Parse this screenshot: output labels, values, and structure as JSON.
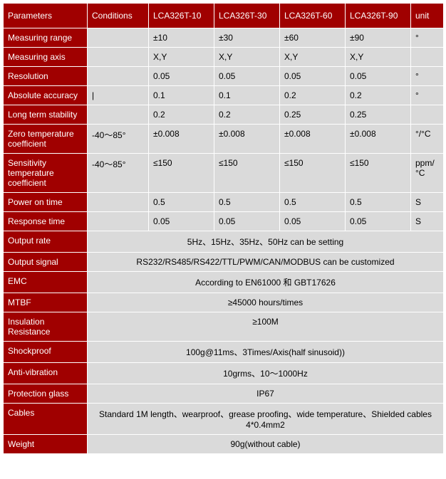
{
  "headers": {
    "param": "Parameters",
    "cond": "Conditions",
    "m1": "LCA326T-10",
    "m2": "LCA326T-30",
    "m3": "LCA326T-60",
    "m4": "LCA326T-90",
    "unit": "unit"
  },
  "rows": {
    "measuring_range": {
      "label": "Measuring range",
      "cond": "",
      "m1": "±10",
      "m2": "±30",
      "m3": "±60",
      "m4": "±90",
      "unit": "°"
    },
    "measuring_axis": {
      "label": "Measuring axis",
      "cond": "",
      "m1": "X,Y",
      "m2": "X,Y",
      "m3": "X,Y",
      "m4": "X,Y",
      "unit": ""
    },
    "resolution": {
      "label": "Resolution",
      "cond": "",
      "m1": "0.05",
      "m2": "0.05",
      "m3": "0.05",
      "m4": "0.05",
      "unit": "°"
    },
    "absolute_accuracy": {
      "label": "Absolute accuracy",
      "cond": "|",
      "m1": "0.1",
      "m2": "0.1",
      "m3": "0.2",
      "m4": "0.2",
      "unit": "°"
    },
    "long_term_stability": {
      "label": "Long term stability",
      "cond": "",
      "m1": "0.2",
      "m2": "0.2",
      "m3": "0.25",
      "m4": "0.25",
      "unit": ""
    },
    "zero_temp_coef": {
      "label": "Zero temperature coefficient",
      "cond": "-40～85°",
      "m1": "±0.008",
      "m2": "±0.008",
      "m3": "±0.008",
      "m4": "±0.008",
      "unit": "°/°C"
    },
    "sens_temp_coef": {
      "label": "Sensitivity temperature coefficient",
      "cond": "-40～85°",
      "m1": "≤150",
      "m2": "≤150",
      "m3": "≤150",
      "m4": "≤150",
      "unit": "ppm/°C"
    },
    "power_on_time": {
      "label": "Power on time",
      "cond": "",
      "m1": "0.5",
      "m2": "0.5",
      "m3": "0.5",
      "m4": "0.5",
      "unit": "S"
    },
    "response_time": {
      "label": "Response time",
      "cond": "",
      "m1": "0.05",
      "m2": "0.05",
      "m3": "0.05",
      "m4": "0.05",
      "unit": "S"
    }
  },
  "spanned": {
    "output_rate": {
      "label": "Output rate",
      "value": "5Hz、15Hz、35Hz、50Hz can be setting"
    },
    "output_signal": {
      "label": "Output signal",
      "value": "RS232/RS485/RS422/TTL/PWM/CAN/MODBUS can be customized"
    },
    "emc": {
      "label": "EMC",
      "value": "According to EN61000 和 GBT17626"
    },
    "mtbf": {
      "label": "MTBF",
      "value": "≥45000 hours/times"
    },
    "insulation": {
      "label": "Insulation Resistance",
      "value": "≥100M"
    },
    "shockproof": {
      "label": "Shockproof",
      "value": "100g@11ms、3Times/Axis(half sinusoid))"
    },
    "anti_vibration": {
      "label": "Anti-vibration",
      "value": "10grms、10～1000Hz"
    },
    "protection": {
      "label": "Protection glass",
      "value": "IP67"
    },
    "cables": {
      "label": "Cables",
      "value": "Standard 1M length、wearproof、grease proofing、wide temperature、Shielded cables 4*0.4mm2"
    },
    "weight": {
      "label": "Weight",
      "value": "90g(without cable)"
    }
  }
}
